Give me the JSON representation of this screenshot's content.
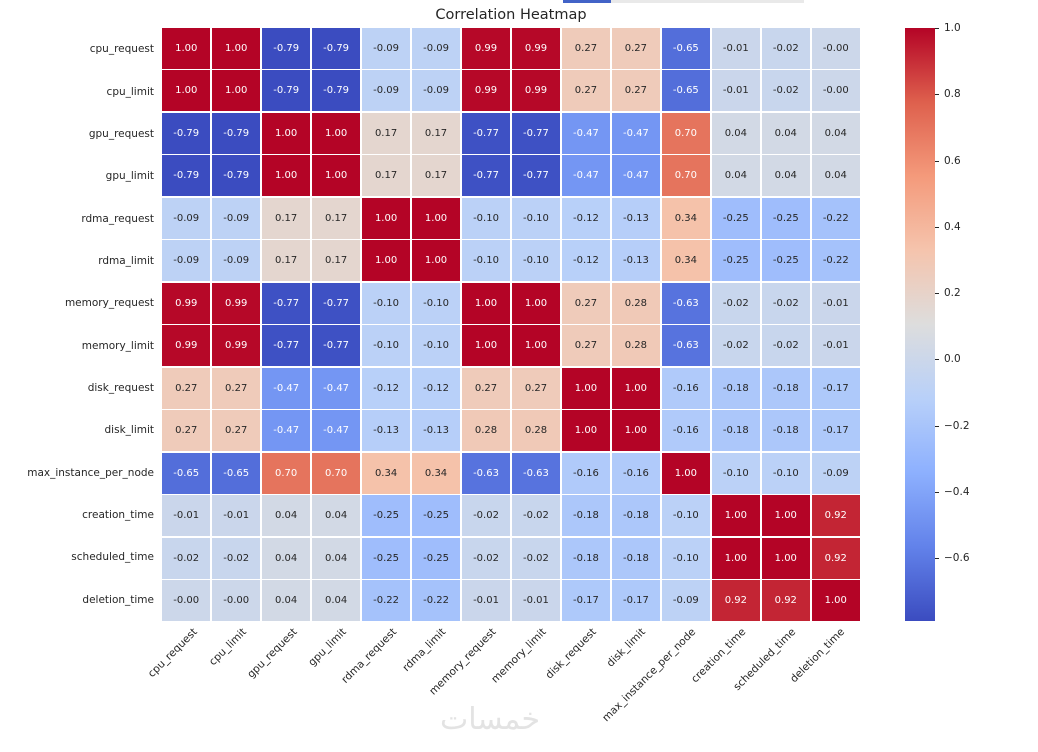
{
  "figure": {
    "background": "#ffffff"
  },
  "top_bar": {
    "fill_color": "#4263c7",
    "track_color": "#e9e9e9"
  },
  "chart_data": {
    "type": "heatmap",
    "title": "Correlation Heatmap",
    "categories": [
      "cpu_request",
      "cpu_limit",
      "gpu_request",
      "gpu_limit",
      "rdma_request",
      "rdma_limit",
      "memory_request",
      "memory_limit",
      "disk_request",
      "disk_limit",
      "max_instance_per_node",
      "creation_time",
      "scheduled_time",
      "deletion_time"
    ],
    "matrix": [
      [
        "1.00",
        "1.00",
        "-0.79",
        "-0.79",
        "-0.09",
        "-0.09",
        "0.99",
        "0.99",
        "0.27",
        "0.27",
        "-0.65",
        "-0.01",
        "-0.02",
        "-0.00"
      ],
      [
        "1.00",
        "1.00",
        "-0.79",
        "-0.79",
        "-0.09",
        "-0.09",
        "0.99",
        "0.99",
        "0.27",
        "0.27",
        "-0.65",
        "-0.01",
        "-0.02",
        "-0.00"
      ],
      [
        "-0.79",
        "-0.79",
        "1.00",
        "1.00",
        "0.17",
        "0.17",
        "-0.77",
        "-0.77",
        "-0.47",
        "-0.47",
        "0.70",
        "0.04",
        "0.04",
        "0.04"
      ],
      [
        "-0.79",
        "-0.79",
        "1.00",
        "1.00",
        "0.17",
        "0.17",
        "-0.77",
        "-0.77",
        "-0.47",
        "-0.47",
        "0.70",
        "0.04",
        "0.04",
        "0.04"
      ],
      [
        "-0.09",
        "-0.09",
        "0.17",
        "0.17",
        "1.00",
        "1.00",
        "-0.10",
        "-0.10",
        "-0.12",
        "-0.13",
        "0.34",
        "-0.25",
        "-0.25",
        "-0.22"
      ],
      [
        "-0.09",
        "-0.09",
        "0.17",
        "0.17",
        "1.00",
        "1.00",
        "-0.10",
        "-0.10",
        "-0.12",
        "-0.13",
        "0.34",
        "-0.25",
        "-0.25",
        "-0.22"
      ],
      [
        "0.99",
        "0.99",
        "-0.77",
        "-0.77",
        "-0.10",
        "-0.10",
        "1.00",
        "1.00",
        "0.27",
        "0.28",
        "-0.63",
        "-0.02",
        "-0.02",
        "-0.01"
      ],
      [
        "0.99",
        "0.99",
        "-0.77",
        "-0.77",
        "-0.10",
        "-0.10",
        "1.00",
        "1.00",
        "0.27",
        "0.28",
        "-0.63",
        "-0.02",
        "-0.02",
        "-0.01"
      ],
      [
        "0.27",
        "0.27",
        "-0.47",
        "-0.47",
        "-0.12",
        "-0.12",
        "0.27",
        "0.27",
        "1.00",
        "1.00",
        "-0.16",
        "-0.18",
        "-0.18",
        "-0.17"
      ],
      [
        "0.27",
        "0.27",
        "-0.47",
        "-0.47",
        "-0.13",
        "-0.13",
        "0.28",
        "0.28",
        "1.00",
        "1.00",
        "-0.16",
        "-0.18",
        "-0.18",
        "-0.17"
      ],
      [
        "-0.65",
        "-0.65",
        "0.70",
        "0.70",
        "0.34",
        "0.34",
        "-0.63",
        "-0.63",
        "-0.16",
        "-0.16",
        "1.00",
        "-0.10",
        "-0.10",
        "-0.09"
      ],
      [
        "-0.01",
        "-0.01",
        "0.04",
        "0.04",
        "-0.25",
        "-0.25",
        "-0.02",
        "-0.02",
        "-0.18",
        "-0.18",
        "-0.10",
        "1.00",
        "1.00",
        "0.92"
      ],
      [
        "-0.02",
        "-0.02",
        "0.04",
        "0.04",
        "-0.25",
        "-0.25",
        "-0.02",
        "-0.02",
        "-0.18",
        "-0.18",
        "-0.10",
        "1.00",
        "1.00",
        "0.92"
      ],
      [
        "-0.00",
        "-0.00",
        "0.04",
        "0.04",
        "-0.22",
        "-0.22",
        "-0.01",
        "-0.01",
        "-0.17",
        "-0.17",
        "-0.09",
        "0.92",
        "0.92",
        "1.00"
      ]
    ],
    "vmin": -0.79,
    "vmax": 1.0,
    "colormap": "coolwarm",
    "colormap_anchors_rgb": [
      [
        59,
        76,
        192
      ],
      [
        98,
        130,
        234
      ],
      [
        141,
        176,
        254
      ],
      [
        184,
        208,
        249
      ],
      [
        221,
        221,
        221
      ],
      [
        245,
        196,
        173
      ],
      [
        244,
        154,
        123
      ],
      [
        222,
        96,
        77
      ],
      [
        180,
        4,
        38
      ]
    ],
    "grid_line_color": "#ffffff",
    "cell_text_light": "#ffffff",
    "cell_text_dark": "#262626",
    "colorbar_position": "right",
    "colorbar_ticks": [
      {
        "value": 1.0,
        "label": "1.0"
      },
      {
        "value": 0.8,
        "label": "0.8"
      },
      {
        "value": 0.6,
        "label": "0.6"
      },
      {
        "value": 0.4,
        "label": "0.4"
      },
      {
        "value": 0.2,
        "label": "0.2"
      },
      {
        "value": 0.0,
        "label": "0.0"
      },
      {
        "value": -0.2,
        "label": "−0.2"
      },
      {
        "value": -0.4,
        "label": "−0.4"
      },
      {
        "value": -0.6,
        "label": "−0.6"
      }
    ]
  },
  "watermark": {
    "text": "خمسات",
    "color": "#e3e3e3"
  }
}
